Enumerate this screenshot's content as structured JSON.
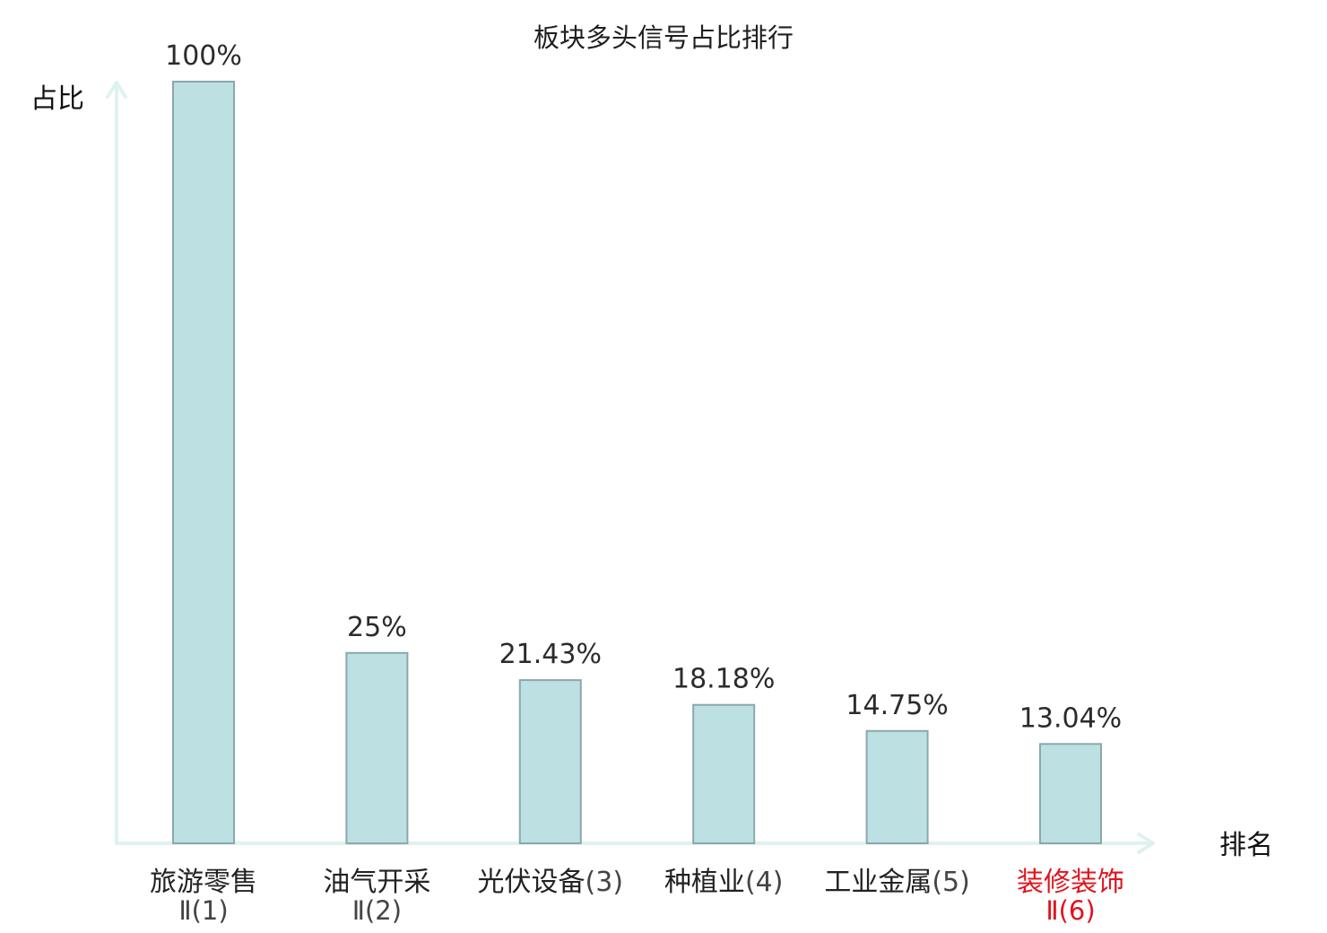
{
  "chart_data": {
    "type": "bar",
    "title": "板块多头信号占比排行",
    "ylabel": "占比",
    "xlabel": "排名",
    "ylim": [
      0,
      100
    ],
    "grid": false,
    "categories": [
      {
        "lines": [
          "旅游零售",
          "Ⅱ(1)"
        ],
        "highlight": false
      },
      {
        "lines": [
          "油气开采",
          "Ⅱ(2)"
        ],
        "highlight": false
      },
      {
        "lines": [
          "光伏设备(3)"
        ],
        "highlight": false
      },
      {
        "lines": [
          "种植业(4)"
        ],
        "highlight": false
      },
      {
        "lines": [
          "工业金属(5)"
        ],
        "highlight": false
      },
      {
        "lines": [
          "装修装饰",
          "Ⅱ(6)"
        ],
        "highlight": true
      }
    ],
    "values": [
      100,
      25,
      21.43,
      18.18,
      14.75,
      13.04
    ],
    "value_labels": [
      "100%",
      "25%",
      "21.43%",
      "18.18%",
      "14.75%",
      "13.04%"
    ],
    "colors": {
      "bar_fill": "#bde0e3",
      "bar_stroke": "#8aa8ad",
      "axis": "#dff2ef",
      "label": "#222222",
      "rank": "#444444",
      "highlight": "#e0141e"
    }
  }
}
